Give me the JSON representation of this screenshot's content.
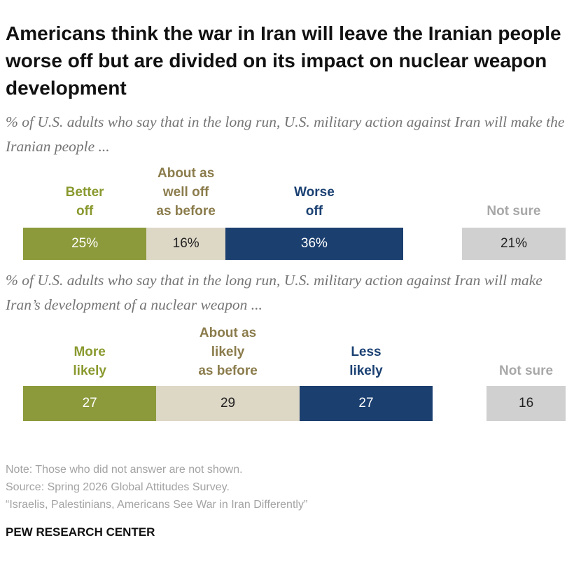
{
  "title": "Americans think the war in Iran will leave the Iranian people worse off but are divided on its impact on nuclear weapon development",
  "chart_data": [
    {
      "type": "stacked-bar",
      "subtitle": "% of U.S. adults who say that in the long run, U.S. military action against Iran will make the Iranian people ...",
      "series": [
        {
          "name": "Better\noff",
          "color": "#8c9a3b",
          "label_color": "#8a992e",
          "values": [
            25
          ],
          "value_labels": [
            "25%"
          ]
        },
        {
          "name": "About as\nwell off\nas before",
          "color": "#ddd7c6",
          "label_color": "#8b7c4c",
          "values": [
            16
          ],
          "value_labels": [
            "16%"
          ]
        },
        {
          "name": "Worse\noff",
          "color": "#1b3f6f",
          "label_color": "#1b4173",
          "values": [
            36
          ],
          "value_labels": [
            "36%"
          ]
        },
        {
          "name": "Not sure",
          "color": "#d0d0d0",
          "label_color": "#a8a8a8",
          "values": [
            21
          ],
          "value_labels": [
            "21%"
          ],
          "separate": true
        }
      ]
    },
    {
      "type": "stacked-bar",
      "subtitle": "% of U.S. adults who say that in the long run, U.S. military action against Iran will make Iran’s development of a nuclear weapon ...",
      "series": [
        {
          "name": "More\nlikely",
          "color": "#8c9a3b",
          "label_color": "#8a992e",
          "values": [
            27
          ]
        },
        {
          "name": "About as\nlikely\nas before",
          "color": "#ddd7c6",
          "label_color": "#8b7c4c",
          "values": [
            29
          ]
        },
        {
          "name": "Less\nlikely",
          "color": "#1b3f6f",
          "label_color": "#1b4173",
          "values": [
            27
          ]
        },
        {
          "name": "Not sure",
          "color": "#d0d0d0",
          "label_color": "#a8a8a8",
          "values": [
            16
          ],
          "separate": true
        }
      ]
    }
  ],
  "notes": [
    "Note: Those who did not answer are not shown.",
    "Source: Spring 2026 Global Attitudes Survey.",
    "“Israelis, Palestinians, Americans See War in Iran Differently”"
  ],
  "brand": "PEW RESEARCH CENTER"
}
